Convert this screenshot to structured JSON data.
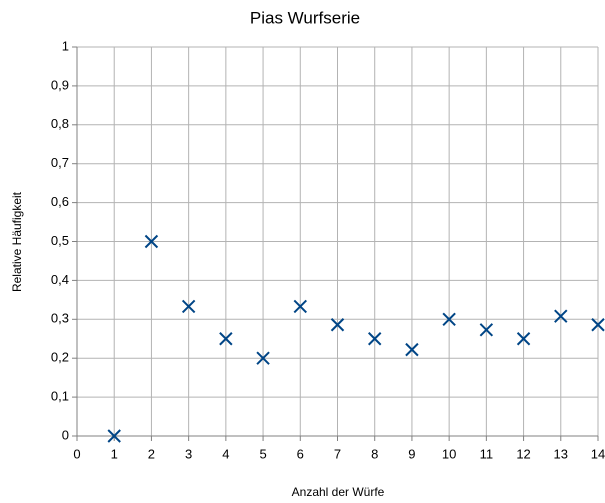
{
  "chart_data": {
    "type": "scatter",
    "title": "Pias Wurfserie",
    "x_label": "Anzahl der Würfe",
    "y_label": "Relative Häufigkeit",
    "x": [
      1,
      2,
      3,
      4,
      5,
      6,
      7,
      8,
      9,
      10,
      11,
      12,
      13,
      14
    ],
    "series": [
      {
        "name": "Relative Häufigkeit",
        "color": "#004586",
        "values": [
          0,
          0.5,
          0.333,
          0.25,
          0.2,
          0.333,
          0.286,
          0.25,
          0.222,
          0.3,
          0.273,
          0.25,
          0.308,
          0.286
        ]
      }
    ],
    "xlim": [
      0,
      14
    ],
    "xticks": [
      0,
      1,
      2,
      3,
      4,
      5,
      6,
      7,
      8,
      9,
      10,
      11,
      12,
      13,
      14
    ],
    "ylim": [
      0,
      1
    ],
    "yticks": [
      0,
      {
        "value": 0.1,
        "label": "0,1"
      },
      {
        "value": 0.2,
        "label": "0,2"
      },
      {
        "value": 0.3,
        "label": "0,3"
      },
      {
        "value": 0.4,
        "label": "0,4"
      },
      {
        "value": 0.5,
        "label": "0,5"
      },
      {
        "value": 0.6,
        "label": "0,6"
      },
      {
        "value": 0.7,
        "label": "0,7"
      },
      {
        "value": 0.8,
        "label": "0,8"
      },
      {
        "value": 0.9,
        "label": "0,9"
      },
      1
    ],
    "grid": true
  }
}
